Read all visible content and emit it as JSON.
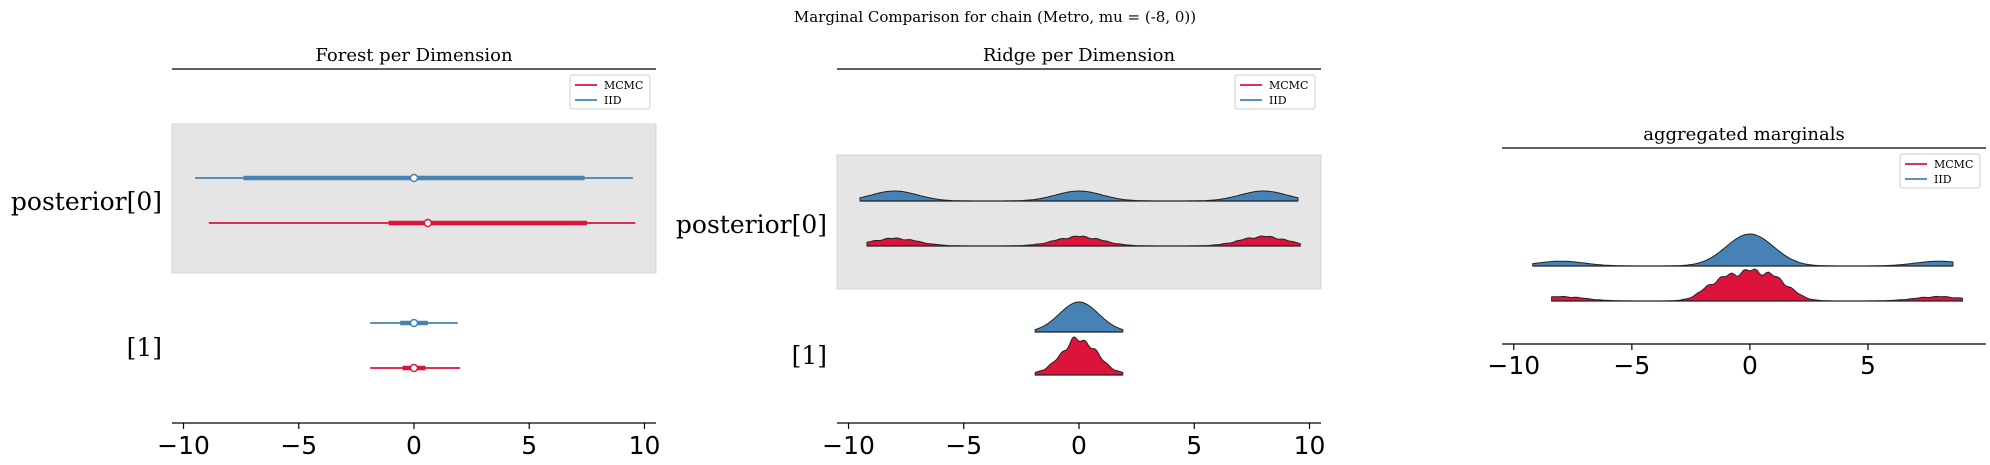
{
  "suptitle": "Marginal Comparison for chain (Metro, mu = (-8, 0))",
  "colors": {
    "mcmc": "#dc143c",
    "iid": "#4682b4",
    "band": "#e5e5e5"
  },
  "chart_data": [
    {
      "type": "forest",
      "title": "Forest per Dimension",
      "xlim": [
        -10.5,
        10.5
      ],
      "xticks": [
        -10,
        -5,
        0,
        5,
        10
      ],
      "xtick_labels": [
        "−10",
        "−5",
        "0",
        "5",
        "10"
      ],
      "legend": {
        "placement": "top-right",
        "entries": [
          "MCMC",
          "IID"
        ]
      },
      "rows": [
        {
          "label": "posterior[0]",
          "shaded": true,
          "series": [
            {
              "name": "IID",
              "median": 0.0,
              "hdi_94": [
                -9.5,
                9.5
              ],
              "iqr": [
                -7.4,
                7.4
              ]
            },
            {
              "name": "MCMC",
              "median": 0.6,
              "hdi_94": [
                -8.9,
                9.6
              ],
              "iqr": [
                -1.1,
                7.5
              ]
            }
          ]
        },
        {
          "label": "[1]",
          "shaded": false,
          "series": [
            {
              "name": "IID",
              "median": 0.0,
              "hdi_94": [
                -1.9,
                1.9
              ],
              "iqr": [
                -0.6,
                0.6
              ]
            },
            {
              "name": "MCMC",
              "median": 0.0,
              "hdi_94": [
                -1.9,
                2.0
              ],
              "iqr": [
                -0.5,
                0.5
              ]
            }
          ]
        }
      ]
    },
    {
      "type": "ridge",
      "title": "Ridge per Dimension",
      "xlim": [
        -10.5,
        10.5
      ],
      "xticks": [
        -10,
        -5,
        0,
        5,
        10
      ],
      "xtick_labels": [
        "−10",
        "−5",
        "0",
        "5",
        "10"
      ],
      "legend": {
        "placement": "top-right",
        "entries": [
          "MCMC",
          "IID"
        ]
      },
      "rows": [
        {
          "label": "posterior[0]",
          "shaded": true,
          "series": [
            {
              "name": "IID",
              "range": [
                -9.5,
                9.5
              ],
              "peaks": [
                [
                  -8,
                  1.0,
                  1.0
                ],
                [
                  0,
                  1.0,
                  1.0
                ],
                [
                  8,
                  1.0,
                  1.0
                ]
              ]
            },
            {
              "name": "MCMC",
              "range": [
                -9.2,
                9.6
              ],
              "peaks": [
                [
                  -8,
                  0.8,
                  1.0
                ],
                [
                  0,
                  1.0,
                  1.0
                ],
                [
                  8,
                  1.0,
                  1.0
                ]
              ]
            }
          ]
        },
        {
          "label": "[1]",
          "shaded": false,
          "series": [
            {
              "name": "IID",
              "range": [
                -1.9,
                1.9
              ],
              "peaks": [
                [
                  0,
                  1.0,
                  0.85
                ]
              ]
            },
            {
              "name": "MCMC",
              "range": [
                -1.9,
                1.9
              ],
              "peaks": [
                [
                  0,
                  1.0,
                  0.85
                ],
                [
                  -0.3,
                  0.25,
                  0.25
                ],
                [
                  0.5,
                  0.2,
                  0.25
                ]
              ]
            }
          ]
        }
      ]
    },
    {
      "type": "ridge",
      "title": "aggregated marginals",
      "xlim": [
        -10.5,
        10.0
      ],
      "xticks": [
        -10,
        -5,
        0,
        5
      ],
      "xtick_labels": [
        "−10",
        "−5",
        "0",
        "5"
      ],
      "legend": {
        "placement": "top-right",
        "entries": [
          "MCMC",
          "IID"
        ]
      },
      "rows": [
        {
          "label": "",
          "shaded": false,
          "series": [
            {
              "name": "IID",
              "range": [
                -9.2,
                8.6
              ],
              "peaks": [
                [
                  -8,
                  0.15,
                  1.0
                ],
                [
                  0,
                  1.0,
                  1.0
                ],
                [
                  8,
                  0.15,
                  1.0
                ]
              ]
            },
            {
              "name": "MCMC",
              "range": [
                -8.4,
                9.0
              ],
              "peaks": [
                [
                  -8,
                  0.15,
                  1.0
                ],
                [
                  0,
                  1.0,
                  1.0
                ],
                [
                  8,
                  0.15,
                  1.0
                ],
                [
                  -1.5,
                  0.35,
                  0.6
                ],
                [
                  1.3,
                  0.3,
                  0.6
                ]
              ]
            }
          ]
        }
      ]
    }
  ]
}
